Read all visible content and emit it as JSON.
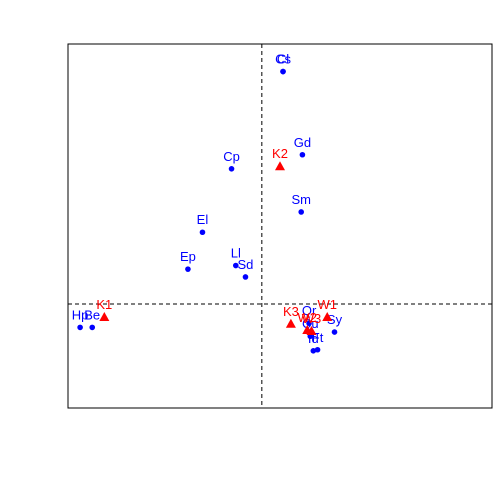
{
  "chart_data": {
    "type": "scatter",
    "title": "",
    "xlabel": "",
    "ylabel": "",
    "grid": false,
    "axes_ticks_shown": false,
    "xlim": [
      -3.2,
      3.8
    ],
    "ylim": [
      -2.0,
      5.0
    ],
    "reference_lines": {
      "x": 0,
      "y": 0
    },
    "series": [
      {
        "marker": "circle",
        "color": "#0000ff",
        "points": [
          {
            "label": "Cs",
            "x": 0.35,
            "y": 4.47
          },
          {
            "label": "Cl",
            "x": 0.35,
            "y": 4.47
          },
          {
            "label": "Gd",
            "x": 0.67,
            "y": 2.87
          },
          {
            "label": "Cp",
            "x": -0.5,
            "y": 2.6
          },
          {
            "label": "Sm",
            "x": 0.65,
            "y": 1.77
          },
          {
            "label": "El",
            "x": -0.98,
            "y": 1.38
          },
          {
            "label": "Ep",
            "x": -1.22,
            "y": 0.67
          },
          {
            "label": "Ll",
            "x": -0.43,
            "y": 0.74
          },
          {
            "label": "Sd",
            "x": -0.27,
            "y": 0.52
          },
          {
            "label": "Hp",
            "x": -3.0,
            "y": -0.45
          },
          {
            "label": "Be",
            "x": -2.8,
            "y": -0.45
          },
          {
            "label": "Sy",
            "x": 1.2,
            "y": -0.54
          },
          {
            "label": "Cu",
            "x": 0.8,
            "y": -0.62
          },
          {
            "label": "Id",
            "x": 0.85,
            "y": -0.9
          },
          {
            "label": "Ft",
            "x": 0.92,
            "y": -0.88
          },
          {
            "label": "Qr",
            "x": 0.78,
            "y": -0.37
          }
        ]
      },
      {
        "marker": "triangle",
        "color": "#ff0000",
        "points": [
          {
            "label": "K1",
            "x": -2.6,
            "y": -0.25
          },
          {
            "label": "K2",
            "x": 0.3,
            "y": 2.65
          },
          {
            "label": "K3",
            "x": 0.48,
            "y": -0.38
          },
          {
            "label": "W1",
            "x": 1.08,
            "y": -0.25
          },
          {
            "label": "W2",
            "x": 0.75,
            "y": -0.5
          },
          {
            "label": "W3",
            "x": 0.82,
            "y": -0.52
          }
        ]
      }
    ]
  }
}
